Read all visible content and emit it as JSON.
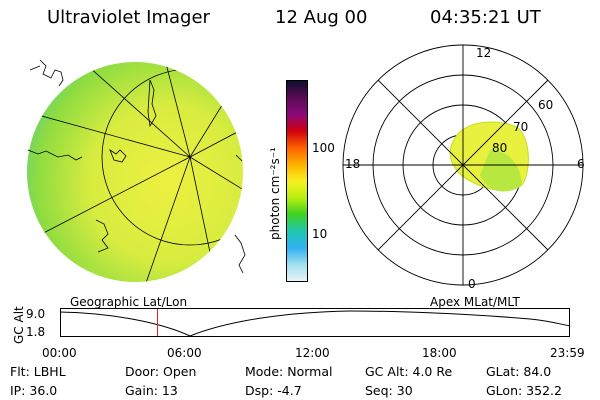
{
  "header": {
    "instrument": "Ultraviolet Imager",
    "date": "12 Aug 00",
    "time": "04:35:21  UT"
  },
  "colorbar": {
    "unit_label": "photon cm⁻²s⁻¹",
    "ticks": [
      "100",
      "10"
    ],
    "colors": [
      "#101030",
      "#5a0a55",
      "#8a0a7a",
      "#d00010",
      "#ff6000",
      "#ffb000",
      "#f8f020",
      "#b8f010",
      "#40d020",
      "#20c8b0",
      "#30b0f0",
      "#a0e0f0",
      "#e8f4f8"
    ]
  },
  "geo_map": {
    "label": "Geographic Lat/Lon",
    "fill_color": "#d8ec40"
  },
  "polar_plot": {
    "label": "Apex MLat/MLT",
    "mlt_labels": {
      "top": "12",
      "right": "6",
      "bottom": "0",
      "left": "18"
    },
    "lat_labels": [
      "60",
      "70",
      "80"
    ],
    "oval_color": "#e8f040"
  },
  "altitude_strip": {
    "y_label": "GC Alt",
    "y_ticks": [
      "9.0",
      "1.8"
    ],
    "time_ticks": [
      "00:00",
      "06:00",
      "12:00",
      "18:00",
      "23:59"
    ],
    "current_time_marker_hours": 4.59,
    "marker_color": "#e02020"
  },
  "footer": {
    "flt": "Flt:  LBHL",
    "ip": "IP:  36.0",
    "door": "Door:  Open",
    "gain": "Gain:  13",
    "mode": "Mode:  Normal",
    "dsp": "Dsp:     -4.7",
    "gc_alt": "GC Alt:  4.0 Re",
    "seq": "Seq:  30",
    "glat": "GLat:   84.0",
    "glon": "GLon:  352.2"
  }
}
